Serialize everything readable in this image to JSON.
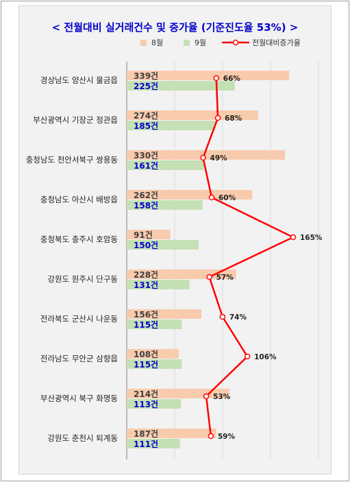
{
  "chart_data": {
    "type": "bar",
    "title": "< 전월대비 실거래건수 및 증가율 (기준진도율 53%) >",
    "orientation": "horizontal",
    "categories": [
      "경상남도 양산시 물금읍",
      "부산광역시 기장군 정관읍",
      "충청남도 천안서북구 쌍용동",
      "충청남도 아산시 배방읍",
      "충청북도 충주시 호암동",
      "강원도 원주시 단구동",
      "전라북도 군산시 나운동",
      "전라남도 무안군 삼향읍",
      "부산광역시 북구 화명동",
      "강원도 춘천시 퇴계동"
    ],
    "series": [
      {
        "name": "8월",
        "type": "bar",
        "color": "#f8cbad",
        "values": [
          339,
          274,
          330,
          262,
          91,
          228,
          156,
          108,
          214,
          187
        ],
        "labels": [
          "339건",
          "274건",
          "330건",
          "262건",
          "91건",
          "228건",
          "156건",
          "108건",
          "214건",
          "187건"
        ]
      },
      {
        "name": "9월",
        "type": "bar",
        "color": "#c5e0b4",
        "values": [
          225,
          185,
          161,
          158,
          150,
          131,
          115,
          115,
          113,
          111
        ],
        "labels": [
          "225건",
          "185건",
          "161건",
          "158건",
          "150건",
          "131건",
          "115건",
          "115건",
          "113건",
          "111건"
        ]
      },
      {
        "name": "전월대비증가율",
        "type": "line",
        "color": "#ff0000",
        "values": [
          66,
          68,
          49,
          60,
          165,
          57,
          74,
          106,
          53,
          59
        ],
        "labels": [
          "66%",
          "68%",
          "49%",
          "60%",
          "165%",
          "57%",
          "74%",
          "106%",
          "53%",
          "59%"
        ]
      }
    ],
    "xlim": [
      0,
      400
    ],
    "rate_xlim": [
      0,
      180
    ],
    "grid": true,
    "legend_position": "top"
  }
}
